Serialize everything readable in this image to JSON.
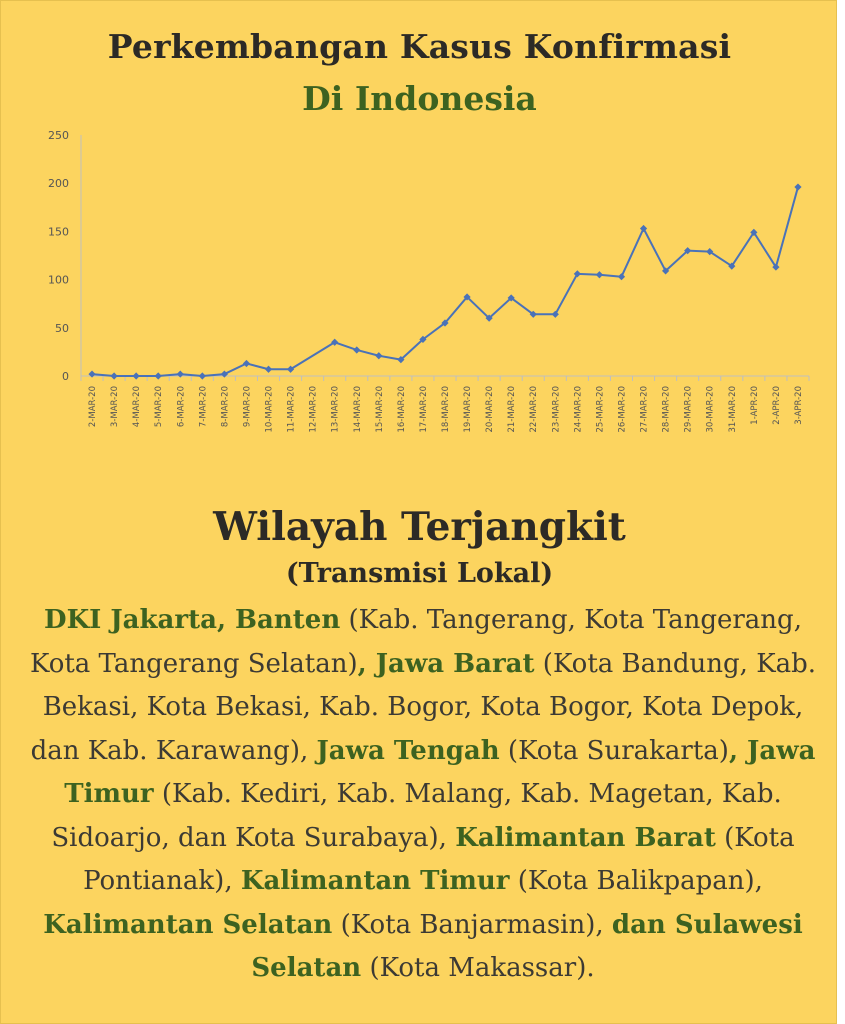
{
  "title_line1": "Perkembangan Kasus Konfirmasi",
  "title_line2": "Di Indonesia",
  "chart_data": {
    "type": "line",
    "title": "Perkembangan Kasus Konfirmasi Di Indonesia",
    "xlabel": "",
    "ylabel": "",
    "ylim": [
      0,
      250
    ],
    "yticks": [
      0,
      50,
      100,
      150,
      200,
      250
    ],
    "grid": false,
    "legend": "none",
    "line_color": "#4a72b8",
    "categories": [
      "2-MAR-20",
      "3-MAR-20",
      "4-MAR-20",
      "5-MAR-20",
      "6-MAR-20",
      "7-MAR-20",
      "8-MAR-20",
      "9-MAR-20",
      "10-MAR-20",
      "11-MAR-20",
      "12-MAR-20",
      "13-MAR-20",
      "14-MAR-20",
      "15-MAR-20",
      "16-MAR-20",
      "17-MAR-20",
      "18-MAR-20",
      "19-MAR-20",
      "20-MAR-20",
      "21-MAR-20",
      "22-MAR-20",
      "23-MAR-20",
      "24-MAR-20",
      "25-MAR-20",
      "26-MAR-20",
      "27-MAR-20",
      "28-MAR-20",
      "29-MAR-20",
      "30-MAR-20",
      "31-MAR-20",
      "1-APR-20",
      "2-APR-20",
      "3-APR-20"
    ],
    "values": [
      2,
      0,
      0,
      0,
      2,
      0,
      2,
      13,
      7,
      7,
      null,
      35,
      27,
      21,
      17,
      38,
      55,
      82,
      60,
      81,
      64,
      64,
      106,
      105,
      103,
      153,
      109,
      130,
      129,
      114,
      149,
      113,
      196
    ]
  },
  "heading": "Wilayah Terjangkit",
  "subheading": "(Transmisi Lokal)",
  "regions": [
    {
      "name": "DKI Jakarta, Banten",
      "detail": " (Kab. Tangerang, Kota Tangerang, Kota Tangerang Selatan)"
    },
    {
      "name": ", Jawa Barat",
      "detail": " (Kota Bandung, Kab. Bekasi, Kota Bekasi, Kab. Bogor, Kota Bogor, Kota Depok, dan Kab. Karawang), "
    },
    {
      "name": "Jawa Tengah",
      "detail": " (Kota Surakarta)"
    },
    {
      "name": ", Jawa Timur",
      "detail": " (Kab. Kediri, Kab. Malang, Kab. Magetan, Kab. Sidoarjo, dan Kota Surabaya), "
    },
    {
      "name": "Kalimantan Barat",
      "detail": " (Kota Pontianak), "
    },
    {
      "name": "Kalimantan Timur",
      "detail": " (Kota Balikpapan), "
    },
    {
      "name": "Kalimantan Selatan",
      "detail": " (Kota Banjarmasin),  "
    },
    {
      "name": "dan Sulawesi Selatan",
      "detail": " (Kota Makassar)."
    }
  ]
}
